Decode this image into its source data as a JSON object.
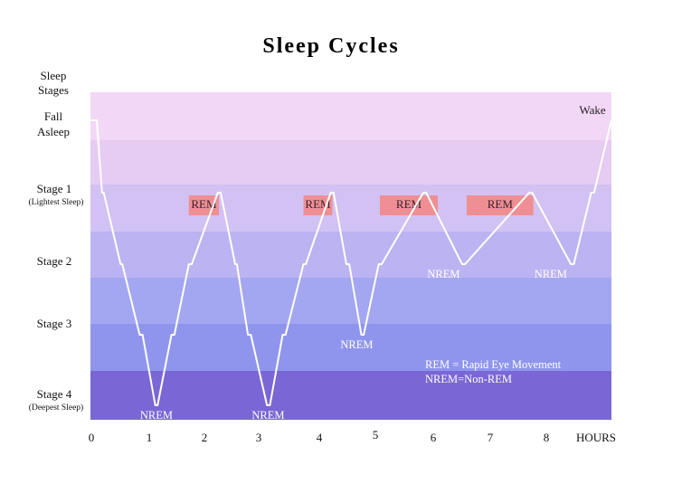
{
  "colors": {
    "bands": [
      "#f2d8f6",
      "#e6cbf3",
      "#d2c1f3",
      "#bbb3f2",
      "#a3a6f0",
      "#8f95ec",
      "#8877e2",
      "#7a66d4"
    ],
    "rem_box": "#ef8f93",
    "hypnogram_line": "#ffffff"
  },
  "chart_data": {
    "type": "line",
    "title": "Sleep Cycles",
    "ylabel": "Sleep Stages",
    "xlabel": "HOURS",
    "xlim": [
      0,
      9
    ],
    "x_ticks": [
      "0",
      "1",
      "2",
      "3",
      "4",
      "5",
      "6",
      "7",
      "8"
    ],
    "y_levels": [
      {
        "label": "Wake",
        "value": 0
      },
      {
        "label": "Fall Asleep",
        "value": 0.2
      },
      {
        "label": "Stage 1",
        "sublabel": "(Lightest Sleep)",
        "value": 1
      },
      {
        "label": "Stage 2",
        "value": 2
      },
      {
        "label": "Stage 3",
        "value": 3
      },
      {
        "label": "Stage 4",
        "sublabel": "(Deepest Sleep)",
        "value": 4
      }
    ],
    "y_axis_header": [
      "Sleep",
      "Stages"
    ],
    "wake_label": "Wake",
    "hypnogram": {
      "x": [
        0,
        0.11,
        0.2,
        0.23,
        0.52,
        0.55,
        0.85,
        0.9,
        1.12,
        1.16,
        1.4,
        1.45,
        1.7,
        1.75,
        2.2,
        2.25,
        2.5,
        2.53,
        2.72,
        2.77,
        3.05,
        3.1,
        3.32,
        3.37,
        3.68,
        3.72,
        4.15,
        4.2,
        4.42,
        4.47,
        4.68,
        4.72,
        4.98,
        5.03,
        5.75,
        5.8,
        6.42,
        6.47,
        7.58,
        7.63,
        8.3,
        8.35,
        8.65,
        8.7,
        9
      ],
      "y": [
        0.2,
        0.2,
        1,
        1,
        2,
        2,
        3,
        3,
        4,
        4,
        3,
        3,
        2,
        2,
        1,
        1,
        2,
        2,
        3,
        3,
        4,
        4,
        3,
        3,
        2,
        2,
        1,
        1,
        2,
        2,
        3,
        3,
        2,
        2,
        1,
        1,
        2,
        2,
        1,
        1,
        2,
        2,
        1,
        1,
        0.2
      ]
    },
    "rem_periods": [
      {
        "label": "REM",
        "x_start": 1.7,
        "x_end": 2.22
      },
      {
        "label": "REM",
        "x_start": 3.68,
        "x_end": 4.18
      },
      {
        "label": "REM",
        "x_start": 5.0,
        "x_end": 6.0
      },
      {
        "label": "REM",
        "x_start": 6.5,
        "x_end": 7.65
      }
    ],
    "nrem_labels": [
      {
        "label": "NREM",
        "x": 1.14,
        "stage": 4
      },
      {
        "label": "NREM",
        "x": 3.07,
        "stage": 4
      },
      {
        "label": "NREM",
        "x": 4.6,
        "stage": 3
      },
      {
        "label": "NREM",
        "x": 6.1,
        "stage": 2
      },
      {
        "label": "NREM",
        "x": 7.95,
        "stage": 2
      }
    ],
    "legend_notes": [
      "REM = Rapid Eye Movement",
      "NREM=Non-REM"
    ]
  }
}
